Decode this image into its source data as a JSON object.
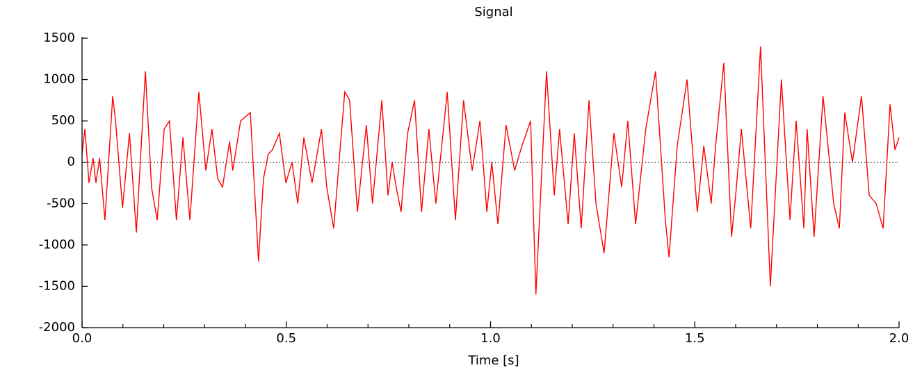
{
  "chart_data": {
    "type": "line",
    "title": "Signal",
    "xlabel": "Time [s]",
    "x": [
      0,
      0.007,
      0.017,
      0.027,
      0.034,
      0.043,
      0.056,
      0.075,
      0.082,
      0.099,
      0.116,
      0.133,
      0.155,
      0.17,
      0.184,
      0.201,
      0.214,
      0.231,
      0.247,
      0.264,
      0.286,
      0.303,
      0.318,
      0.332,
      0.344,
      0.361,
      0.369,
      0.388,
      0.412,
      0.432,
      0.444,
      0.456,
      0.466,
      0.483,
      0.499,
      0.514,
      0.528,
      0.543,
      0.563,
      0.586,
      0.599,
      0.616,
      0.643,
      0.655,
      0.674,
      0.696,
      0.711,
      0.734,
      0.749,
      0.759,
      0.769,
      0.781,
      0.797,
      0.814,
      0.831,
      0.849,
      0.866,
      0.894,
      0.914,
      0.934,
      0.955,
      0.974,
      0.991,
      1.003,
      1.018,
      1.038,
      1.059,
      1.077,
      1.098,
      1.111,
      1.137,
      1.156,
      1.169,
      1.19,
      1.205,
      1.222,
      1.241,
      1.258,
      1.278,
      1.302,
      1.321,
      1.336,
      1.355,
      1.38,
      1.404,
      1.428,
      1.437,
      1.457,
      1.481,
      1.506,
      1.522,
      1.54,
      1.551,
      1.571,
      1.59,
      1.6,
      1.614,
      1.637,
      1.661,
      1.685,
      1.712,
      1.733,
      1.748,
      1.767,
      1.775,
      1.792,
      1.814,
      1.84,
      1.854,
      1.867,
      1.886,
      1.908,
      1.927,
      1.944,
      1.961,
      1.978,
      1.99,
      2.0
    ],
    "values": [
      100,
      400,
      -250,
      50,
      -250,
      50,
      -700,
      800,
      500,
      -550,
      350,
      -850,
      1100,
      -300,
      -700,
      400,
      500,
      -700,
      300,
      -700,
      850,
      -100,
      400,
      -200,
      -300,
      250,
      -100,
      500,
      600,
      -1200,
      -200,
      100,
      150,
      350,
      -250,
      0,
      -500,
      300,
      -250,
      400,
      -300,
      -800,
      850,
      750,
      -600,
      450,
      -500,
      750,
      -400,
      0,
      -300,
      -600,
      350,
      750,
      -600,
      400,
      -500,
      850,
      -700,
      750,
      -100,
      500,
      -600,
      0,
      -750,
      450,
      -100,
      200,
      500,
      -1600,
      1100,
      -400,
      400,
      -750,
      350,
      -800,
      750,
      -500,
      -1100,
      350,
      -300,
      500,
      -750,
      400,
      1100,
      -700,
      -1150,
      200,
      1000,
      -600,
      200,
      -500,
      200,
      1200,
      -900,
      -400,
      400,
      -800,
      1400,
      -1500,
      1000,
      -700,
      500,
      -800,
      400,
      -900,
      800,
      -500,
      -800,
      600,
      0,
      800,
      -400,
      -500,
      -800,
      700,
      150,
      300
    ],
    "color": "#ff0000",
    "xlim": [
      0,
      2
    ],
    "ylim": [
      -2000,
      1500
    ],
    "xticks": [
      {
        "value": 0,
        "label": "0.0"
      },
      0.5,
      {
        "value": 1,
        "label": "1.0"
      },
      1.5,
      {
        "value": 2,
        "label": "2.0"
      }
    ],
    "xminorticks": [
      0.1,
      0.2,
      0.3,
      0.4,
      0.6,
      0.7,
      0.8,
      0.9,
      1.1,
      1.2,
      1.3,
      1.4,
      1.6,
      1.7,
      1.8,
      1.9
    ],
    "yticks": [
      -2000,
      -1500,
      -1000,
      -500,
      0,
      500,
      1000,
      1500
    ],
    "hlines": [
      0
    ]
  }
}
